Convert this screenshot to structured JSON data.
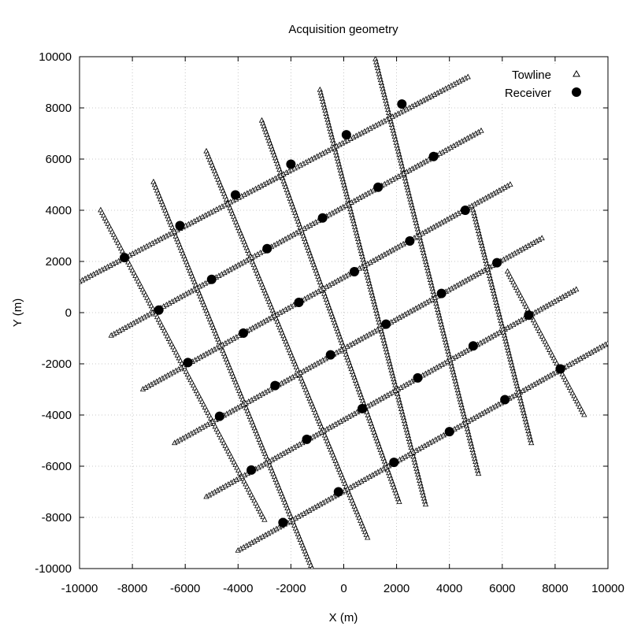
{
  "chart_data": {
    "type": "scatter",
    "title": "Acquisition geometry",
    "xlabel": "X (m)",
    "ylabel": "Y (m)",
    "xlim": [
      -10000,
      10000
    ],
    "ylim": [
      -10000,
      10000
    ],
    "xticks": [
      -10000,
      -8000,
      -6000,
      -4000,
      -2000,
      0,
      2000,
      4000,
      6000,
      8000,
      10000
    ],
    "yticks": [
      -10000,
      -8000,
      -6000,
      -4000,
      -2000,
      0,
      2000,
      4000,
      6000,
      8000,
      10000
    ],
    "xtick_labels": [
      "-10000",
      "-8000",
      "-6000",
      "-4000",
      "-2000",
      "0",
      "2000",
      "4000",
      "6000",
      "8000",
      "10000"
    ],
    "ytick_labels": [
      "-10000",
      "-8000",
      "-6000",
      "-4000",
      "-2000",
      "0",
      "2000",
      "4000",
      "6000",
      "8000",
      "10000"
    ],
    "grid": true,
    "legend_position": "top-right",
    "series": [
      {
        "name": "Towline",
        "marker": "open-triangle",
        "color": "#000000",
        "towlines": [
          {
            "start": [
              -9200,
              4000
            ],
            "end": [
              -3000,
              -8100
            ]
          },
          {
            "start": [
              -7200,
              5100
            ],
            "end": [
              -1200,
              -10000
            ]
          },
          {
            "start": [
              -5200,
              6300
            ],
            "end": [
              900,
              -8800
            ]
          },
          {
            "start": [
              -3100,
              7500
            ],
            "end": [
              2100,
              -7400
            ]
          },
          {
            "start": [
              -900,
              8700
            ],
            "end": [
              3100,
              -7500
            ]
          },
          {
            "start": [
              1200,
              9900
            ],
            "end": [
              5100,
              -6300
            ]
          },
          {
            "start": [
              -10000,
              1200
            ],
            "end": [
              4700,
              9200
            ]
          },
          {
            "start": [
              -8800,
              -900
            ],
            "end": [
              5200,
              7100
            ]
          },
          {
            "start": [
              -7600,
              -3000
            ],
            "end": [
              6300,
              5000
            ]
          },
          {
            "start": [
              -6400,
              -5100
            ],
            "end": [
              7500,
              2900
            ]
          },
          {
            "start": [
              -5200,
              -7200
            ],
            "end": [
              8800,
              900
            ]
          },
          {
            "start": [
              -4000,
              -9300
            ],
            "end": [
              10000,
              -1200
            ]
          },
          {
            "start": [
              4900,
              4000
            ],
            "end": [
              7100,
              -5100
            ]
          },
          {
            "start": [
              6200,
              1600
            ],
            "end": [
              9100,
              -4000
            ]
          }
        ]
      },
      {
        "name": "Receiver",
        "marker": "filled-circle",
        "color": "#000000",
        "points": [
          [
            -8300,
            2150
          ],
          [
            -7000,
            100
          ],
          [
            -5900,
            -1950
          ],
          [
            -4700,
            -4050
          ],
          [
            -3500,
            -6150
          ],
          [
            -2300,
            -8200
          ],
          [
            -6200,
            3400
          ],
          [
            -5000,
            1300
          ],
          [
            -3800,
            -800
          ],
          [
            -2600,
            -2850
          ],
          [
            -1400,
            -4950
          ],
          [
            -200,
            -7000
          ],
          [
            -4100,
            4600
          ],
          [
            -2900,
            2500
          ],
          [
            -1700,
            400
          ],
          [
            -500,
            -1650
          ],
          [
            700,
            -3750
          ],
          [
            1900,
            -5850
          ],
          [
            -2000,
            5800
          ],
          [
            -800,
            3700
          ],
          [
            400,
            1600
          ],
          [
            1600,
            -450
          ],
          [
            2800,
            -2550
          ],
          [
            4000,
            -4650
          ],
          [
            100,
            6950
          ],
          [
            1300,
            4900
          ],
          [
            2500,
            2800
          ],
          [
            3700,
            750
          ],
          [
            4900,
            -1300
          ],
          [
            6100,
            -3400
          ],
          [
            2200,
            8150
          ],
          [
            3400,
            6100
          ],
          [
            4600,
            4000
          ],
          [
            5800,
            1950
          ],
          [
            7000,
            -100
          ],
          [
            8200,
            -2200
          ]
        ]
      }
    ]
  }
}
